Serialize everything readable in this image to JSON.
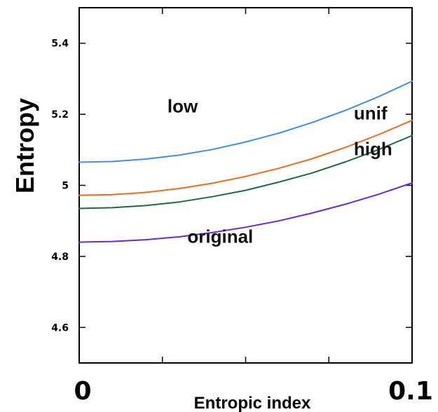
{
  "chart_data": {
    "type": "line",
    "title": "",
    "xlabel": "Entropic index",
    "ylabel": "Entropy",
    "xlim": [
      0,
      0.1
    ],
    "ylim": [
      4.5,
      5.5
    ],
    "x_tick_labels": [
      "0",
      "0.1"
    ],
    "y_ticks": [
      4.6,
      4.8,
      5,
      5.2,
      5.4
    ],
    "y_tick_labels": [
      "4.6",
      "4.8",
      "5",
      "5.2",
      "5.4"
    ],
    "grid": false,
    "x": [
      0,
      0.01,
      0.02,
      0.03,
      0.04,
      0.05,
      0.06,
      0.07,
      0.08,
      0.09,
      0.1
    ],
    "series": [
      {
        "name": "low",
        "color": "#3d8ef0",
        "values": [
          5.065,
          5.067,
          5.074,
          5.085,
          5.101,
          5.122,
          5.147,
          5.177,
          5.211,
          5.25,
          5.293
        ]
      },
      {
        "name": "unif",
        "color": "#f06a1e",
        "values": [
          4.972,
          4.974,
          4.98,
          4.991,
          5.006,
          5.025,
          5.048,
          5.075,
          5.107,
          5.143,
          5.183
        ]
      },
      {
        "name": "high",
        "color": "#1f6b3a",
        "values": [
          4.935,
          4.937,
          4.943,
          4.953,
          4.968,
          4.986,
          5.009,
          5.035,
          5.066,
          5.101,
          5.14
        ]
      },
      {
        "name": "original",
        "color": "#6a28d8",
        "values": [
          4.84,
          4.842,
          4.847,
          4.855,
          4.867,
          4.882,
          4.9,
          4.922,
          4.947,
          4.975,
          5.007
        ]
      }
    ]
  }
}
